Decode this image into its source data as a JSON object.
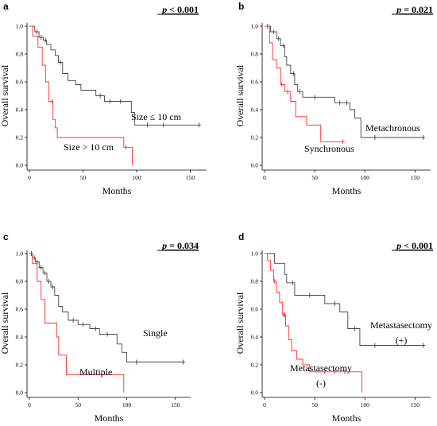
{
  "chart_data": [
    {
      "type": "line",
      "panel": "a",
      "p_value": "p < 0.001",
      "xlabel": "Months",
      "ylabel": "Overall survival",
      "xlim": [
        0,
        160
      ],
      "ylim": [
        0,
        1.0
      ],
      "x_ticks": [
        "0",
        "50",
        "100",
        "150"
      ],
      "y_ticks": [
        "0.0",
        "0.2",
        "0.4",
        "0.6",
        "0.8",
        "1.0"
      ],
      "series": [
        {
          "name": "Size ≤ 10 cm",
          "color": "#444444",
          "points": [
            [
              0,
              1.0
            ],
            [
              5,
              1.0
            ],
            [
              5,
              0.96
            ],
            [
              9,
              0.96
            ],
            [
              9,
              0.92
            ],
            [
              13,
              0.92
            ],
            [
              13,
              0.9
            ],
            [
              16,
              0.9
            ],
            [
              16,
              0.87
            ],
            [
              20,
              0.87
            ],
            [
              20,
              0.83
            ],
            [
              24,
              0.83
            ],
            [
              24,
              0.79
            ],
            [
              27,
              0.79
            ],
            [
              27,
              0.74
            ],
            [
              31,
              0.74
            ],
            [
              31,
              0.66
            ],
            [
              36,
              0.66
            ],
            [
              36,
              0.61
            ],
            [
              43,
              0.61
            ],
            [
              43,
              0.58
            ],
            [
              48,
              0.58
            ],
            [
              48,
              0.54
            ],
            [
              62,
              0.54
            ],
            [
              62,
              0.5
            ],
            [
              70,
              0.5
            ],
            [
              70,
              0.46
            ],
            [
              95,
              0.46
            ],
            [
              95,
              0.38
            ],
            [
              98,
              0.38
            ],
            [
              98,
              0.29
            ],
            [
              160,
              0.29
            ]
          ],
          "censor": [
            [
              7,
              0.96
            ],
            [
              11,
              0.92
            ],
            [
              15,
              0.9
            ],
            [
              29,
              0.74
            ],
            [
              66,
              0.5
            ],
            [
              75,
              0.46
            ],
            [
              85,
              0.46
            ],
            [
              110,
              0.29
            ],
            [
              125,
              0.29
            ],
            [
              158,
              0.29
            ]
          ]
        },
        {
          "name": "Size > 10 cm",
          "color": "#ff2a2a",
          "points": [
            [
              0,
              1.0
            ],
            [
              3,
              1.0
            ],
            [
              3,
              0.93
            ],
            [
              8,
              0.93
            ],
            [
              8,
              0.85
            ],
            [
              12,
              0.85
            ],
            [
              12,
              0.72
            ],
            [
              15,
              0.72
            ],
            [
              15,
              0.6
            ],
            [
              18,
              0.6
            ],
            [
              18,
              0.46
            ],
            [
              22,
              0.46
            ],
            [
              22,
              0.33
            ],
            [
              24,
              0.33
            ],
            [
              24,
              0.27
            ],
            [
              26,
              0.27
            ],
            [
              26,
              0.2
            ],
            [
              88,
              0.2
            ],
            [
              88,
              0.13
            ],
            [
              96,
              0.13
            ],
            [
              96,
              0.0
            ]
          ],
          "censor": [
            [
              21,
              0.46
            ],
            [
              90,
              0.13
            ]
          ]
        }
      ]
    },
    {
      "type": "line",
      "panel": "b",
      "p_value": "p = 0.021",
      "xlabel": "Months",
      "ylabel": "Overall survival",
      "xlim": [
        0,
        160
      ],
      "ylim": [
        0,
        1.0
      ],
      "x_ticks": [
        "0",
        "50",
        "100",
        "150"
      ],
      "y_ticks": [
        "0.0",
        "0.2",
        "0.4",
        "0.6",
        "0.8",
        "1.0"
      ],
      "series": [
        {
          "name": "Metachronous",
          "color": "#444444",
          "points": [
            [
              0,
              1.0
            ],
            [
              6,
              1.0
            ],
            [
              6,
              0.96
            ],
            [
              12,
              0.96
            ],
            [
              12,
              0.91
            ],
            [
              16,
              0.91
            ],
            [
              16,
              0.86
            ],
            [
              20,
              0.86
            ],
            [
              20,
              0.78
            ],
            [
              22,
              0.78
            ],
            [
              22,
              0.72
            ],
            [
              26,
              0.72
            ],
            [
              26,
              0.66
            ],
            [
              30,
              0.66
            ],
            [
              30,
              0.58
            ],
            [
              33,
              0.58
            ],
            [
              33,
              0.53
            ],
            [
              38,
              0.53
            ],
            [
              38,
              0.49
            ],
            [
              70,
              0.49
            ],
            [
              70,
              0.45
            ],
            [
              85,
              0.45
            ],
            [
              85,
              0.4
            ],
            [
              90,
              0.4
            ],
            [
              90,
              0.34
            ],
            [
              96,
              0.34
            ],
            [
              96,
              0.2
            ],
            [
              160,
              0.2
            ]
          ],
          "censor": [
            [
              3,
              1.0
            ],
            [
              9,
              0.96
            ],
            [
              14,
              0.91
            ],
            [
              19,
              0.86
            ],
            [
              29,
              0.66
            ],
            [
              35,
              0.53
            ],
            [
              50,
              0.49
            ],
            [
              75,
              0.45
            ],
            [
              82,
              0.45
            ],
            [
              110,
              0.2
            ],
            [
              158,
              0.2
            ]
          ]
        },
        {
          "name": "Synchronous",
          "color": "#ff2a2a",
          "points": [
            [
              0,
              1.0
            ],
            [
              5,
              1.0
            ],
            [
              5,
              0.88
            ],
            [
              8,
              0.88
            ],
            [
              8,
              0.76
            ],
            [
              12,
              0.76
            ],
            [
              12,
              0.7
            ],
            [
              16,
              0.7
            ],
            [
              16,
              0.58
            ],
            [
              20,
              0.58
            ],
            [
              20,
              0.53
            ],
            [
              26,
              0.53
            ],
            [
              26,
              0.46
            ],
            [
              31,
              0.46
            ],
            [
              31,
              0.35
            ],
            [
              42,
              0.35
            ],
            [
              42,
              0.29
            ],
            [
              56,
              0.29
            ],
            [
              56,
              0.17
            ],
            [
              80,
              0.17
            ]
          ],
          "censor": [
            [
              17,
              0.58
            ],
            [
              23,
              0.53
            ],
            [
              78,
              0.17
            ]
          ]
        }
      ]
    },
    {
      "type": "line",
      "panel": "c",
      "p_value": "p = 0.034",
      "xlabel": "Months",
      "ylabel": "Overall survival",
      "xlim": [
        0,
        160
      ],
      "ylim": [
        0,
        1.0
      ],
      "x_ticks": [
        "0",
        "50",
        "100",
        "150"
      ],
      "y_ticks": [
        "0.0",
        "0.2",
        "0.4",
        "0.6",
        "0.8",
        "1.0"
      ],
      "series": [
        {
          "name": "Single",
          "color": "#444444",
          "points": [
            [
              0,
              1.0
            ],
            [
              3,
              1.0
            ],
            [
              3,
              0.97
            ],
            [
              6,
              0.97
            ],
            [
              6,
              0.94
            ],
            [
              10,
              0.94
            ],
            [
              10,
              0.9
            ],
            [
              14,
              0.9
            ],
            [
              14,
              0.86
            ],
            [
              18,
              0.86
            ],
            [
              18,
              0.8
            ],
            [
              22,
              0.8
            ],
            [
              22,
              0.76
            ],
            [
              26,
              0.76
            ],
            [
              26,
              0.7
            ],
            [
              30,
              0.7
            ],
            [
              30,
              0.62
            ],
            [
              34,
              0.62
            ],
            [
              34,
              0.58
            ],
            [
              40,
              0.58
            ],
            [
              40,
              0.52
            ],
            [
              50,
              0.52
            ],
            [
              50,
              0.49
            ],
            [
              62,
              0.49
            ],
            [
              62,
              0.46
            ],
            [
              72,
              0.46
            ],
            [
              72,
              0.42
            ],
            [
              90,
              0.42
            ],
            [
              90,
              0.35
            ],
            [
              95,
              0.35
            ],
            [
              95,
              0.29
            ],
            [
              100,
              0.29
            ],
            [
              100,
              0.22
            ],
            [
              160,
              0.22
            ]
          ],
          "censor": [
            [
              2,
              1.0
            ],
            [
              5,
              0.97
            ],
            [
              8,
              0.94
            ],
            [
              12,
              0.9
            ],
            [
              16,
              0.86
            ],
            [
              20,
              0.8
            ],
            [
              24,
              0.76
            ],
            [
              45,
              0.52
            ],
            [
              55,
              0.49
            ],
            [
              68,
              0.46
            ],
            [
              80,
              0.42
            ],
            [
              110,
              0.22
            ],
            [
              158,
              0.22
            ]
          ]
        },
        {
          "name": "Multiple",
          "color": "#ff2a2a",
          "points": [
            [
              0,
              1.0
            ],
            [
              3,
              1.0
            ],
            [
              3,
              0.93
            ],
            [
              8,
              0.93
            ],
            [
              8,
              0.8
            ],
            [
              12,
              0.8
            ],
            [
              12,
              0.67
            ],
            [
              16,
              0.67
            ],
            [
              16,
              0.5
            ],
            [
              28,
              0.5
            ],
            [
              28,
              0.4
            ],
            [
              30,
              0.4
            ],
            [
              30,
              0.27
            ],
            [
              38,
              0.27
            ],
            [
              38,
              0.13
            ],
            [
              97,
              0.13
            ],
            [
              97,
              0.0
            ]
          ],
          "censor": []
        }
      ]
    },
    {
      "type": "line",
      "panel": "d",
      "p_value": "p < 0.001",
      "xlabel": "Months",
      "ylabel": "Overall survival",
      "xlim": [
        0,
        160
      ],
      "ylim": [
        0,
        1.0
      ],
      "x_ticks": [
        "0",
        "50",
        "100",
        "150"
      ],
      "y_ticks": [
        "0.0",
        "0.2",
        "0.4",
        "0.6",
        "0.8",
        "1.0"
      ],
      "series": [
        {
          "name": "Metastasectomy (+)",
          "color": "#444444",
          "points": [
            [
              0,
              1.0
            ],
            [
              10,
              1.0
            ],
            [
              10,
              0.93
            ],
            [
              20,
              0.93
            ],
            [
              20,
              0.85
            ],
            [
              22,
              0.85
            ],
            [
              22,
              0.79
            ],
            [
              30,
              0.79
            ],
            [
              30,
              0.7
            ],
            [
              60,
              0.7
            ],
            [
              60,
              0.64
            ],
            [
              75,
              0.64
            ],
            [
              75,
              0.58
            ],
            [
              83,
              0.58
            ],
            [
              83,
              0.46
            ],
            [
              95,
              0.46
            ],
            [
              95,
              0.34
            ],
            [
              160,
              0.34
            ]
          ],
          "censor": [
            [
              28,
              0.79
            ],
            [
              45,
              0.7
            ],
            [
              70,
              0.64
            ],
            [
              90,
              0.46
            ],
            [
              110,
              0.34
            ],
            [
              158,
              0.34
            ]
          ]
        },
        {
          "name": "Metastasectomy (-)",
          "color": "#ff2a2a",
          "points": [
            [
              0,
              1.0
            ],
            [
              3,
              1.0
            ],
            [
              3,
              0.95
            ],
            [
              6,
              0.95
            ],
            [
              6,
              0.88
            ],
            [
              9,
              0.88
            ],
            [
              9,
              0.8
            ],
            [
              12,
              0.8
            ],
            [
              12,
              0.72
            ],
            [
              15,
              0.72
            ],
            [
              15,
              0.65
            ],
            [
              18,
              0.65
            ],
            [
              18,
              0.56
            ],
            [
              21,
              0.56
            ],
            [
              21,
              0.48
            ],
            [
              24,
              0.48
            ],
            [
              24,
              0.38
            ],
            [
              27,
              0.38
            ],
            [
              27,
              0.3
            ],
            [
              32,
              0.3
            ],
            [
              32,
              0.24
            ],
            [
              38,
              0.24
            ],
            [
              38,
              0.2
            ],
            [
              45,
              0.2
            ],
            [
              45,
              0.15
            ],
            [
              97,
              0.15
            ],
            [
              97,
              0.0
            ]
          ],
          "censor": [
            [
              10,
              0.8
            ],
            [
              19,
              0.56
            ],
            [
              20,
              0.56
            ],
            [
              60,
              0.15
            ],
            [
              70,
              0.15
            ],
            [
              80,
              0.15
            ]
          ]
        }
      ]
    }
  ],
  "panels": [
    {
      "letter": "a",
      "p_prefix": "p",
      "p_rest": " < 0.001"
    },
    {
      "letter": "b",
      "p_prefix": "p",
      "p_rest": " = 0.021"
    },
    {
      "letter": "c",
      "p_prefix": "p",
      "p_rest": " = 0.034"
    },
    {
      "letter": "d",
      "p_prefix": "p",
      "p_rest": " < 0.001"
    }
  ]
}
